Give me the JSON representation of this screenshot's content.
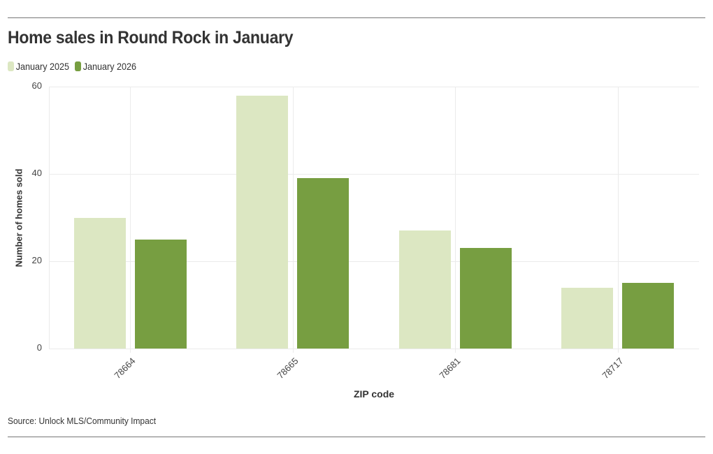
{
  "header": {
    "title": "Home sales in Round Rock in January"
  },
  "legend": [
    {
      "label": "January 2025",
      "color": "#dce7c2"
    },
    {
      "label": "January 2026",
      "color": "#779e41"
    }
  ],
  "footer": {
    "source": "Source: Unlock MLS/Community Impact"
  },
  "chart_data": {
    "type": "bar",
    "title": "Home sales in Round Rock in January",
    "xlabel": "ZIP code",
    "ylabel": "Number of homes sold",
    "categories": [
      "78664",
      "78665",
      "78681",
      "78717"
    ],
    "series": [
      {
        "name": "January 2025",
        "color": "#dce7c2",
        "values": [
          30,
          58,
          27,
          14
        ]
      },
      {
        "name": "January 2026",
        "color": "#779e41",
        "values": [
          25,
          39,
          23,
          15
        ]
      }
    ],
    "yticks": [
      "0",
      "20",
      "40",
      "60"
    ],
    "ylim": [
      0,
      60
    ],
    "grid": true,
    "legend_position": "top-left",
    "source": "Source: Unlock MLS/Community Impact"
  }
}
